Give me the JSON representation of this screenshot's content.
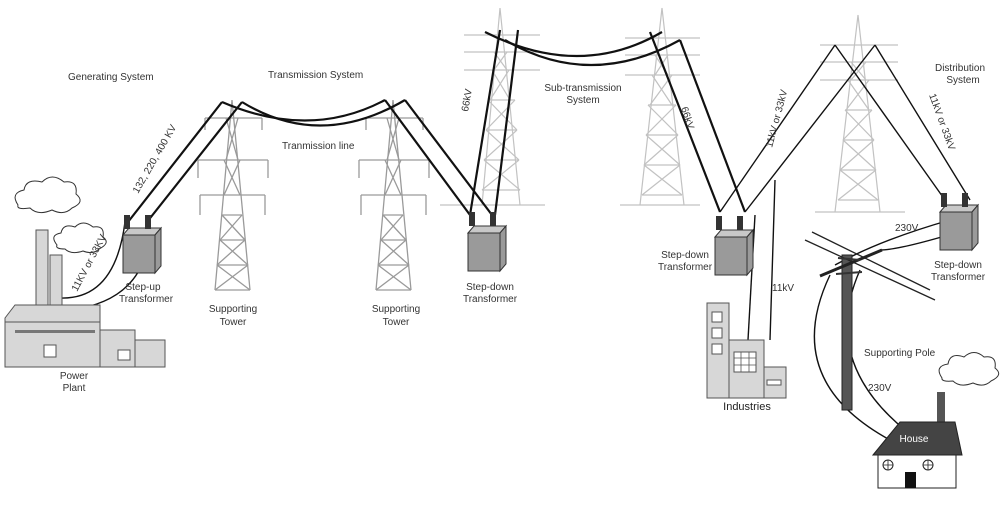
{
  "labels": {
    "generating_system": "Generating System",
    "transmission_system": "Transmission System",
    "transmission_line": "Tranmission line",
    "sub_transmission_1": "Sub-transmission",
    "sub_transmission_2": "System",
    "distribution_1": "Distribution",
    "distribution_2": "System",
    "power_plant_1": "Power",
    "power_plant_2": "Plant",
    "step_up_1": "Step-up",
    "step_up_2": "Transformer",
    "supporting_tower": "Supporting",
    "tower_word": "Tower",
    "step_down_1": "Step-down",
    "step_down_2": "Transformer",
    "industries": "Industries",
    "supporting_pole": "Supporting Pole",
    "house": "House",
    "v_11kv_33kv_plant": "11KV or 33KV",
    "v_132_220_400": "132, 220, 400 KV",
    "v_66kv_left": "66kV",
    "v_66kv_right": "66kV",
    "v_11kv_33kv_mid": "11kV or 33kV",
    "v_11kv_33kv_right": "11kV or 33kV",
    "v_11kv": "11kV",
    "v_230v_top": "230V",
    "v_230v_pole": "230V"
  },
  "colors": {
    "wire": "#111111",
    "tower": "#9a9a9a",
    "transformer": "#9a9a9a",
    "building": "#d7d7d7"
  }
}
